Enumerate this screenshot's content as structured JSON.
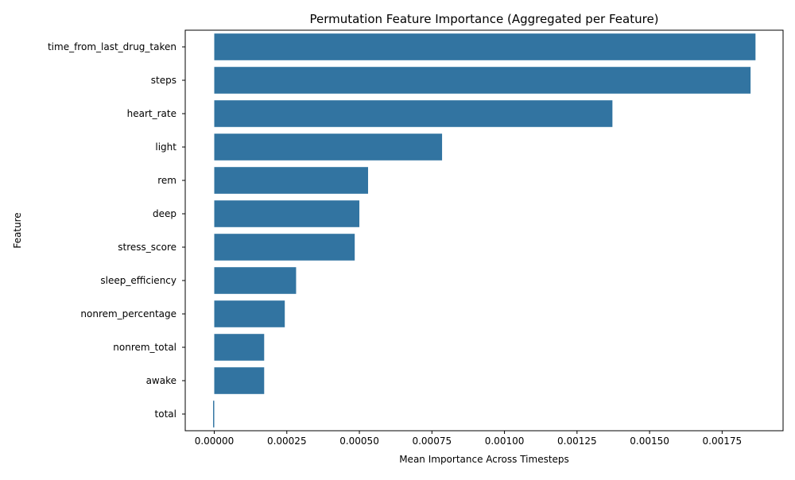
{
  "chart_data": {
    "type": "bar",
    "orientation": "horizontal",
    "title": "Permutation Feature Importance (Aggregated per Feature)",
    "xlabel": "Mean Importance Across Timesteps",
    "ylabel": "Feature",
    "categories": [
      "time_from_last_drug_taken",
      "steps",
      "heart_rate",
      "light",
      "rem",
      "deep",
      "stress_score",
      "sleep_efficiency",
      "nonrem_percentage",
      "nonrem_total",
      "awake",
      "total"
    ],
    "values": [
      0.001865,
      0.001848,
      0.001372,
      0.000785,
      0.00053,
      0.0005,
      0.000484,
      0.000282,
      0.000243,
      0.000172,
      0.000172,
      -4e-06
    ],
    "xlim": [
      -0.0001,
      0.00196
    ],
    "xticks": [
      0.0,
      0.00025,
      0.0005,
      0.00075,
      0.001,
      0.00125,
      0.0015,
      0.00175
    ],
    "xtick_labels": [
      "0.00000",
      "0.00025",
      "0.00050",
      "0.00075",
      "0.00100",
      "0.00125",
      "0.00150",
      "0.00175"
    ],
    "grid": false,
    "legend": false,
    "bar_color": "#3274a1"
  }
}
